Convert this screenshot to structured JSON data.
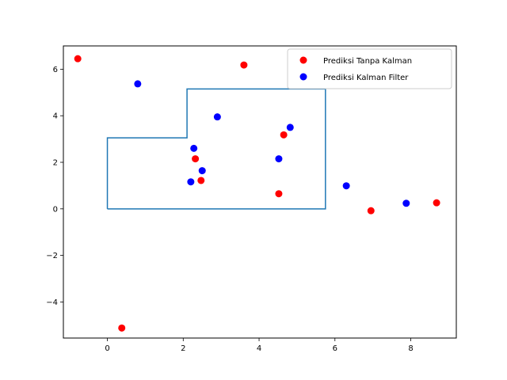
{
  "chart_data": {
    "type": "scatter",
    "title": "",
    "xlabel": "",
    "ylabel": "",
    "xlim": [
      -1.16,
      9.2
    ],
    "ylim": [
      -5.55,
      7.0
    ],
    "xticks": [
      0,
      2,
      4,
      6,
      8
    ],
    "yticks": [
      -4,
      -2,
      0,
      2,
      4,
      6
    ],
    "grid": false,
    "legend_position": "top-right",
    "outline": {
      "color": "#1f77b4",
      "x": [
        0,
        0,
        2.1,
        2.1,
        5.75,
        5.75,
        0
      ],
      "y": [
        0,
        3.05,
        3.05,
        5.15,
        5.15,
        0,
        0
      ]
    },
    "series": [
      {
        "name": "Prediksi Tanpa Kalman",
        "color": "#ff0000",
        "points": [
          {
            "x": -0.78,
            "y": 6.45
          },
          {
            "x": 3.6,
            "y": 6.18
          },
          {
            "x": 4.65,
            "y": 3.18
          },
          {
            "x": 2.32,
            "y": 2.15
          },
          {
            "x": 2.47,
            "y": 1.22
          },
          {
            "x": 4.52,
            "y": 0.65
          },
          {
            "x": 6.95,
            "y": -0.08
          },
          {
            "x": 8.68,
            "y": 0.26
          },
          {
            "x": 0.38,
            "y": -5.12
          }
        ]
      },
      {
        "name": "Prediksi Kalman Filter",
        "color": "#0000ff",
        "points": [
          {
            "x": 0.8,
            "y": 5.37
          },
          {
            "x": 2.9,
            "y": 3.95
          },
          {
            "x": 4.82,
            "y": 3.5
          },
          {
            "x": 2.28,
            "y": 2.6
          },
          {
            "x": 4.52,
            "y": 2.15
          },
          {
            "x": 2.5,
            "y": 1.64
          },
          {
            "x": 2.2,
            "y": 1.16
          },
          {
            "x": 6.3,
            "y": 0.99
          },
          {
            "x": 7.88,
            "y": 0.24
          }
        ]
      }
    ]
  }
}
